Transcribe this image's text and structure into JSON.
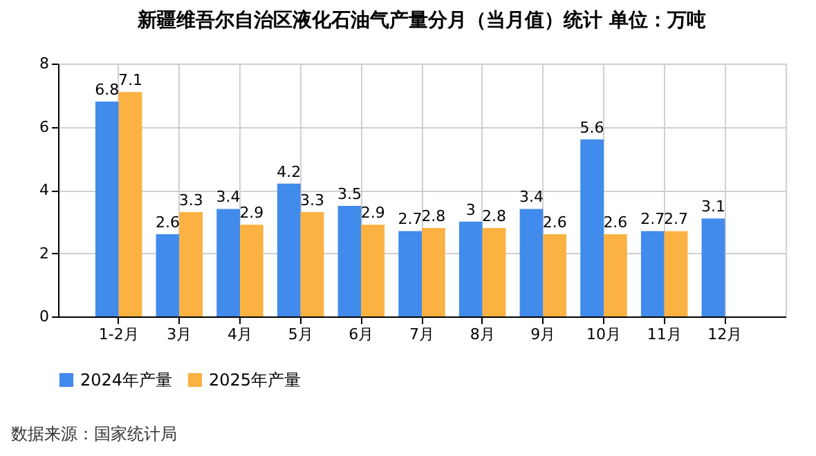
{
  "chart_data": {
    "type": "bar",
    "title": "新疆维吾尔自治区液化石油气产量分月（当月值）统计  单位：万吨",
    "categories": [
      "1-2月",
      "3月",
      "4月",
      "5月",
      "6月",
      "7月",
      "8月",
      "9月",
      "10月",
      "11月",
      "12月"
    ],
    "series": [
      {
        "name": "2024年产量",
        "color": "#418bec",
        "values": [
          6.8,
          2.6,
          3.4,
          4.2,
          3.5,
          2.7,
          3,
          3.4,
          5.6,
          2.7,
          3.1
        ]
      },
      {
        "name": "2025年产量",
        "color": "#fbb242",
        "values": [
          7.1,
          3.3,
          2.9,
          3.3,
          2.9,
          2.8,
          2.8,
          2.6,
          2.6,
          2.7,
          null
        ]
      }
    ],
    "ylim": [
      0,
      8
    ],
    "yticks": [
      0,
      2,
      4,
      6,
      8
    ],
    "grid": true,
    "legend": "bottom",
    "data_labels": true,
    "annotations": [
      "数据来源：国家统计局"
    ]
  }
}
